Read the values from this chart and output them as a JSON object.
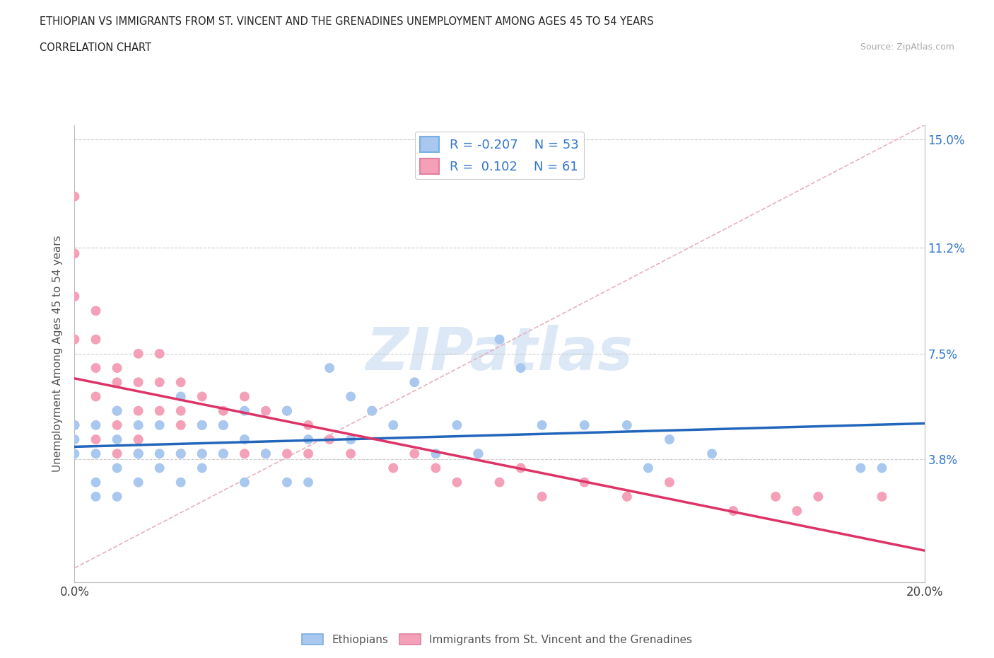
{
  "title_line1": "ETHIOPIAN VS IMMIGRANTS FROM ST. VINCENT AND THE GRENADINES UNEMPLOYMENT AMONG AGES 45 TO 54 YEARS",
  "title_line2": "CORRELATION CHART",
  "source": "Source: ZipAtlas.com",
  "ylabel": "Unemployment Among Ages 45 to 54 years",
  "xlim": [
    0.0,
    0.2
  ],
  "ylim": [
    -0.005,
    0.155
  ],
  "ytick_positions": [
    0.038,
    0.075,
    0.112,
    0.15
  ],
  "ytick_labels": [
    "3.8%",
    "7.5%",
    "11.2%",
    "15.0%"
  ],
  "blue_R": -0.207,
  "blue_N": 53,
  "pink_R": 0.102,
  "pink_N": 61,
  "blue_color": "#a8c8f0",
  "pink_color": "#f4a0b8",
  "blue_line_color": "#2266bb",
  "pink_line_color": "#dd3366",
  "watermark_color": "#dce8f5",
  "ethiopians_x": [
    0.0,
    0.0,
    0.0,
    0.005,
    0.005,
    0.005,
    0.005,
    0.01,
    0.01,
    0.01,
    0.01,
    0.015,
    0.015,
    0.015,
    0.015,
    0.02,
    0.02,
    0.02,
    0.025,
    0.025,
    0.025,
    0.03,
    0.03,
    0.03,
    0.035,
    0.035,
    0.04,
    0.04,
    0.04,
    0.045,
    0.05,
    0.05,
    0.055,
    0.055,
    0.06,
    0.065,
    0.065,
    0.07,
    0.075,
    0.08,
    0.085,
    0.09,
    0.095,
    0.1,
    0.105,
    0.11,
    0.12,
    0.13,
    0.135,
    0.14,
    0.15,
    0.185,
    0.19
  ],
  "ethiopians_y": [
    0.045,
    0.04,
    0.05,
    0.025,
    0.04,
    0.03,
    0.05,
    0.025,
    0.035,
    0.045,
    0.055,
    0.03,
    0.04,
    0.05,
    0.04,
    0.035,
    0.05,
    0.04,
    0.03,
    0.04,
    0.06,
    0.04,
    0.05,
    0.035,
    0.04,
    0.05,
    0.055,
    0.045,
    0.03,
    0.04,
    0.055,
    0.03,
    0.045,
    0.03,
    0.07,
    0.045,
    0.06,
    0.055,
    0.05,
    0.065,
    0.04,
    0.05,
    0.04,
    0.08,
    0.07,
    0.05,
    0.05,
    0.05,
    0.035,
    0.045,
    0.04,
    0.035,
    0.035
  ],
  "stvg_x": [
    0.0,
    0.0,
    0.0,
    0.0,
    0.0,
    0.005,
    0.005,
    0.005,
    0.005,
    0.005,
    0.01,
    0.01,
    0.01,
    0.01,
    0.01,
    0.015,
    0.015,
    0.015,
    0.015,
    0.015,
    0.02,
    0.02,
    0.02,
    0.025,
    0.025,
    0.025,
    0.025,
    0.03,
    0.03,
    0.03,
    0.035,
    0.035,
    0.035,
    0.04,
    0.04,
    0.045,
    0.045,
    0.05,
    0.05,
    0.055,
    0.055,
    0.06,
    0.065,
    0.065,
    0.07,
    0.075,
    0.08,
    0.085,
    0.09,
    0.095,
    0.1,
    0.105,
    0.11,
    0.12,
    0.13,
    0.14,
    0.155,
    0.165,
    0.17,
    0.175,
    0.19
  ],
  "stvg_y": [
    0.13,
    0.11,
    0.095,
    0.08,
    0.05,
    0.09,
    0.07,
    0.06,
    0.045,
    0.08,
    0.065,
    0.055,
    0.05,
    0.04,
    0.07,
    0.075,
    0.065,
    0.055,
    0.045,
    0.04,
    0.065,
    0.055,
    0.075,
    0.065,
    0.055,
    0.04,
    0.05,
    0.06,
    0.05,
    0.04,
    0.055,
    0.04,
    0.05,
    0.06,
    0.04,
    0.055,
    0.04,
    0.055,
    0.04,
    0.05,
    0.04,
    0.045,
    0.045,
    0.04,
    0.055,
    0.035,
    0.04,
    0.035,
    0.03,
    0.04,
    0.03,
    0.035,
    0.025,
    0.03,
    0.025,
    0.03,
    0.02,
    0.025,
    0.02,
    0.025,
    0.025
  ]
}
